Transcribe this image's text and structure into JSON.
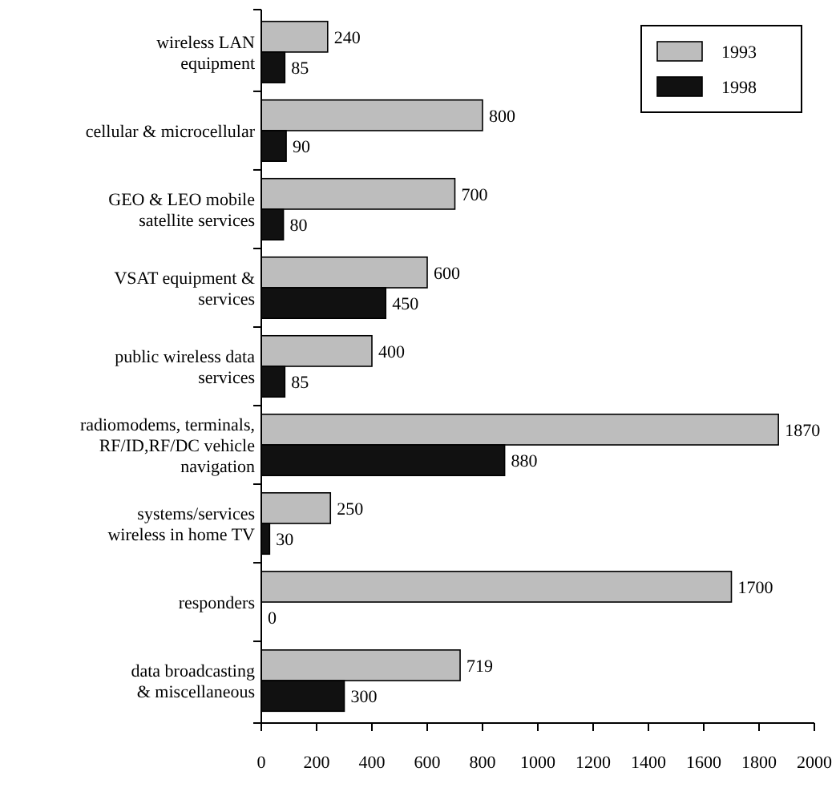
{
  "chart_data": {
    "type": "bar",
    "orientation": "horizontal",
    "categories": [
      "wireless LAN\nequipment",
      "cellular & microcellular",
      "GEO & LEO mobile\nsatellite services",
      "VSAT equipment &\nservices",
      "public wireless data\nservices",
      "radiomodems, terminals,\nRF/ID,RF/DC vehicle\nnavigation",
      "systems/services\nwireless in home TV",
      "responders",
      "data broadcasting\n& miscellaneous"
    ],
    "series": [
      {
        "name": "1993",
        "color": "#bdbdbd",
        "values": [
          240,
          800,
          700,
          600,
          400,
          1870,
          250,
          1700,
          719
        ]
      },
      {
        "name": "1998",
        "color": "#111111",
        "values": [
          85,
          90,
          80,
          450,
          85,
          880,
          30,
          0,
          300
        ]
      }
    ],
    "xlim": [
      0,
      2000
    ],
    "xticks": [
      0,
      200,
      400,
      600,
      800,
      1000,
      1200,
      1400,
      1600,
      1800,
      2000
    ],
    "data_labels": true,
    "legend": "top right",
    "grid": false
  }
}
